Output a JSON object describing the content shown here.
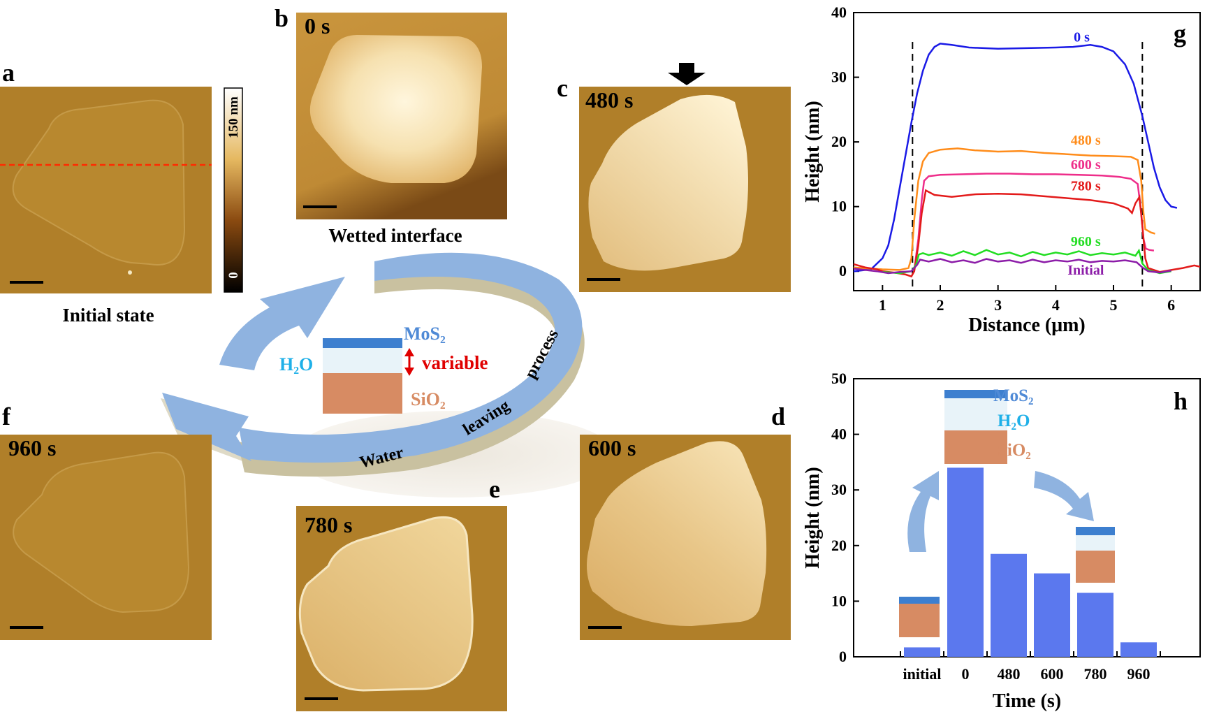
{
  "colors": {
    "afm_base": "#b07f29",
    "afm_flake_thin": "#bb8a36",
    "afm_flake_thick": "#f4e2b8",
    "arrow_blue": "#8fb3e0",
    "mos2": "#3d7fcf",
    "h2o": "#e8f3f9",
    "sio2": "#d78b63",
    "h2o_text": "#1fb0e8",
    "variable_text": "#e00000",
    "bar": "#5b78ee",
    "cut_line": "#ff2a00"
  },
  "panels": {
    "a": {
      "letter": "a",
      "caption": "Initial state"
    },
    "b": {
      "letter": "b",
      "time": "0 s",
      "caption": "Wetted interface"
    },
    "c": {
      "letter": "c",
      "time": "480 s"
    },
    "d": {
      "letter": "d",
      "time": "600 s"
    },
    "e": {
      "letter": "e",
      "time": "780 s"
    },
    "f": {
      "letter": "f",
      "time": "960 s"
    },
    "colorbar": {
      "max_label": "150 nm",
      "min_label": "0"
    }
  },
  "cycle": {
    "text_water": "Water",
    "text_leaving": "leaving",
    "text_process": "process",
    "legend": {
      "mos2": "MoS₂",
      "h2o": "H₂O",
      "sio2": "SiO₂",
      "variable": "variable"
    }
  },
  "chart_data": [
    {
      "panel": "g",
      "type": "line",
      "xlabel": "Distance (μm)",
      "ylabel": "Height (nm)",
      "xlim": [
        0.5,
        6.5
      ],
      "ylim": [
        -3,
        40
      ],
      "xticks": [
        1,
        2,
        3,
        4,
        5,
        6
      ],
      "yticks": [
        0,
        10,
        20,
        30,
        40
      ],
      "dashed_vlines": [
        1.52,
        5.5
      ],
      "series": [
        {
          "name": "0 s",
          "color": "#1a1ae6",
          "label_pos": [
            4.45,
            35.5
          ],
          "points": [
            [
              0.5,
              0
            ],
            [
              0.8,
              0.3
            ],
            [
              1.0,
              2
            ],
            [
              1.1,
              4
            ],
            [
              1.2,
              8
            ],
            [
              1.3,
              13
            ],
            [
              1.4,
              18
            ],
            [
              1.5,
              23
            ],
            [
              1.6,
              27.5
            ],
            [
              1.7,
              31
            ],
            [
              1.8,
              33.5
            ],
            [
              1.9,
              34.7
            ],
            [
              2.0,
              35.2
            ],
            [
              2.2,
              35
            ],
            [
              2.5,
              34.6
            ],
            [
              3.0,
              34.4
            ],
            [
              3.5,
              34.5
            ],
            [
              4.0,
              34.6
            ],
            [
              4.3,
              34.7
            ],
            [
              4.6,
              35
            ],
            [
              4.8,
              34.7
            ],
            [
              5.0,
              34
            ],
            [
              5.2,
              32
            ],
            [
              5.35,
              29
            ],
            [
              5.5,
              24
            ],
            [
              5.6,
              20
            ],
            [
              5.7,
              16
            ],
            [
              5.8,
              13
            ],
            [
              5.9,
              11
            ],
            [
              6.0,
              10
            ],
            [
              6.1,
              9.8
            ]
          ]
        },
        {
          "name": "480 s",
          "color": "#ff8c1a",
          "label_pos": [
            4.52,
            19.6
          ],
          "points": [
            [
              0.5,
              0.6
            ],
            [
              1.0,
              0.3
            ],
            [
              1.3,
              0.2
            ],
            [
              1.45,
              0.5
            ],
            [
              1.5,
              2
            ],
            [
              1.55,
              8
            ],
            [
              1.62,
              14
            ],
            [
              1.7,
              17
            ],
            [
              1.8,
              18.3
            ],
            [
              2.0,
              18.8
            ],
            [
              2.3,
              19
            ],
            [
              2.6,
              18.7
            ],
            [
              3.0,
              18.5
            ],
            [
              3.4,
              18.6
            ],
            [
              3.8,
              18.3
            ],
            [
              4.2,
              18.1
            ],
            [
              4.6,
              17.9
            ],
            [
              5.0,
              17.8
            ],
            [
              5.3,
              17.7
            ],
            [
              5.42,
              17.2
            ],
            [
              5.48,
              14
            ],
            [
              5.52,
              9
            ],
            [
              5.55,
              6.5
            ],
            [
              5.65,
              6
            ],
            [
              5.72,
              5.8
            ]
          ]
        },
        {
          "name": "600 s",
          "color": "#ee2d8a",
          "label_pos": [
            4.52,
            15.8
          ],
          "points": [
            [
              1.55,
              0.2
            ],
            [
              1.62,
              5
            ],
            [
              1.68,
              11
            ],
            [
              1.72,
              14
            ],
            [
              1.8,
              14.7
            ],
            [
              2.0,
              14.9
            ],
            [
              2.4,
              15
            ],
            [
              2.8,
              15.1
            ],
            [
              3.2,
              15.1
            ],
            [
              3.6,
              15
            ],
            [
              4.0,
              15
            ],
            [
              4.4,
              14.9
            ],
            [
              4.8,
              14.8
            ],
            [
              5.1,
              14.6
            ],
            [
              5.3,
              14.3
            ],
            [
              5.42,
              13.5
            ],
            [
              5.48,
              9
            ],
            [
              5.52,
              5
            ],
            [
              5.56,
              3.5
            ],
            [
              5.62,
              3.3
            ],
            [
              5.7,
              3.2
            ]
          ]
        },
        {
          "name": "780 s",
          "color": "#e31a1a",
          "label_pos": [
            4.52,
            12.5
          ],
          "points": [
            [
              0.5,
              1.1
            ],
            [
              0.7,
              0.6
            ],
            [
              0.9,
              0.3
            ],
            [
              1.0,
              0
            ],
            [
              1.2,
              -0.2
            ],
            [
              1.4,
              -0.5
            ],
            [
              1.5,
              -0.8
            ],
            [
              1.55,
              0
            ],
            [
              1.62,
              4
            ],
            [
              1.68,
              9
            ],
            [
              1.75,
              12.5
            ],
            [
              1.9,
              11.8
            ],
            [
              2.2,
              11.5
            ],
            [
              2.6,
              11.9
            ],
            [
              3.0,
              12
            ],
            [
              3.4,
              11.9
            ],
            [
              3.8,
              11.6
            ],
            [
              4.2,
              11.3
            ],
            [
              4.6,
              11
            ],
            [
              5.0,
              10.5
            ],
            [
              5.25,
              9.7
            ],
            [
              5.32,
              9
            ],
            [
              5.38,
              10.5
            ],
            [
              5.45,
              11.5
            ],
            [
              5.5,
              7
            ],
            [
              5.55,
              2
            ],
            [
              5.6,
              0.5
            ],
            [
              5.8,
              -0.1
            ],
            [
              6.0,
              0.2
            ],
            [
              6.2,
              0.5
            ],
            [
              6.4,
              0.9
            ],
            [
              6.5,
              0.7
            ]
          ]
        },
        {
          "name": "960 s",
          "color": "#22dd22",
          "label_pos": [
            4.52,
            3.9
          ],
          "points": [
            [
              1.0,
              -0.1
            ],
            [
              1.3,
              -0.3
            ],
            [
              1.5,
              0
            ],
            [
              1.58,
              1
            ],
            [
              1.63,
              2.6
            ],
            [
              1.7,
              2.8
            ],
            [
              1.8,
              2.5
            ],
            [
              2.0,
              2.9
            ],
            [
              2.2,
              2.4
            ],
            [
              2.4,
              3.1
            ],
            [
              2.6,
              2.5
            ],
            [
              2.8,
              3.3
            ],
            [
              3.0,
              2.6
            ],
            [
              3.2,
              2.9
            ],
            [
              3.4,
              2.3
            ],
            [
              3.6,
              3
            ],
            [
              3.8,
              2.5
            ],
            [
              4.0,
              2.9
            ],
            [
              4.2,
              2.6
            ],
            [
              4.4,
              3.1
            ],
            [
              4.6,
              2.5
            ],
            [
              4.8,
              2.8
            ],
            [
              5.0,
              2.6
            ],
            [
              5.2,
              2.9
            ],
            [
              5.38,
              2.4
            ],
            [
              5.44,
              3.2
            ],
            [
              5.5,
              1.2
            ],
            [
              5.6,
              0.2
            ],
            [
              5.8,
              -0.3
            ],
            [
              6.0,
              0
            ]
          ]
        },
        {
          "name": "Initial",
          "color": "#8c1ca8",
          "label_pos": [
            4.52,
            -0.5
          ],
          "points": [
            [
              0.5,
              0.4
            ],
            [
              0.7,
              0.2
            ],
            [
              0.9,
              0
            ],
            [
              1.1,
              -0.3
            ],
            [
              1.3,
              -0.1
            ],
            [
              1.5,
              0
            ],
            [
              1.6,
              1
            ],
            [
              1.65,
              1.8
            ],
            [
              1.8,
              1.5
            ],
            [
              2.0,
              1.9
            ],
            [
              2.2,
              1.4
            ],
            [
              2.4,
              1.7
            ],
            [
              2.6,
              1.3
            ],
            [
              2.8,
              1.9
            ],
            [
              3.0,
              1.5
            ],
            [
              3.2,
              1.7
            ],
            [
              3.4,
              1.3
            ],
            [
              3.6,
              1.8
            ],
            [
              3.8,
              1.4
            ],
            [
              4.0,
              1.7
            ],
            [
              4.2,
              1.5
            ],
            [
              4.4,
              1.8
            ],
            [
              4.6,
              1.4
            ],
            [
              4.8,
              1.6
            ],
            [
              5.0,
              1.5
            ],
            [
              5.2,
              1.7
            ],
            [
              5.4,
              1.4
            ],
            [
              5.5,
              0.6
            ],
            [
              5.6,
              0
            ],
            [
              5.8,
              -0.2
            ],
            [
              6.0,
              0.1
            ]
          ]
        }
      ]
    },
    {
      "panel": "h",
      "type": "bar",
      "xlabel": "Time (s)",
      "ylabel": "Height (nm)",
      "ylim": [
        0,
        50
      ],
      "yticks": [
        0,
        10,
        20,
        30,
        40,
        50
      ],
      "categories": [
        "initial",
        "0",
        "480",
        "600",
        "780",
        "960"
      ],
      "values": [
        1.7,
        34,
        18.5,
        15,
        11.5,
        2.6
      ],
      "legend": {
        "mos2": "MoS₂",
        "h2o": "H₂O",
        "sio2": "SiO₂"
      }
    }
  ]
}
